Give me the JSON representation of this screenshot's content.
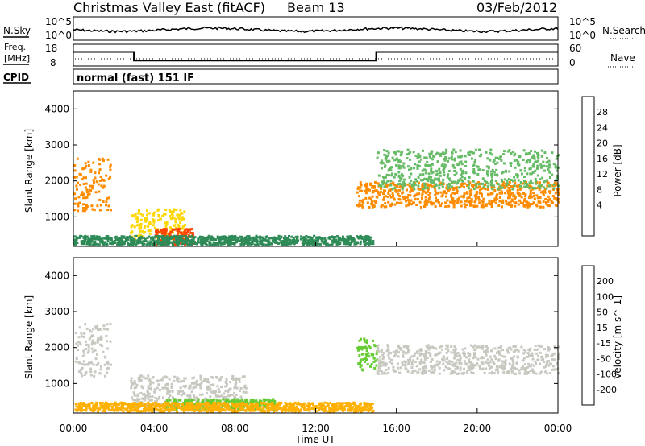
{
  "header": {
    "title": "Christmas Valley East (fitACF)",
    "beam": "Beam 13",
    "date": "03/Feb/2012"
  },
  "noise_panel": {
    "left_label": "N.Sky",
    "right_label": "N.Search",
    "tick_top": "10^5",
    "tick_bottom": "10^0"
  },
  "freq_panel": {
    "left_label_1": "Freq.",
    "left_label_2": "[MHz]",
    "right_label": "Nave",
    "left_ticks": [
      "18",
      "8"
    ],
    "right_ticks": [
      "60",
      "0"
    ],
    "freq_series_mhz": [
      [
        0,
        14.5
      ],
      [
        3.0,
        14.5
      ],
      [
        3.0,
        10.5
      ],
      [
        15.0,
        10.5
      ],
      [
        15.0,
        14.5
      ],
      [
        24,
        14.5
      ]
    ]
  },
  "cpid": {
    "label": "CPID",
    "program": "normal (fast) 151 IF"
  },
  "power_panel": {
    "ylabel": "Slant Range [km]",
    "yticks": [
      "4000",
      "3000",
      "2000",
      "1000"
    ],
    "ylim_km": [
      180,
      4500
    ],
    "colorbar": {
      "label": "Power [dB]",
      "ticks": [
        "28",
        "24",
        "20",
        "16",
        "12",
        "8",
        "4"
      ],
      "colors": [
        "#1010e0",
        "#3060c0",
        "#2e8b57",
        "#66bb66",
        "#b8e000",
        "#ffd700",
        "#ff8c00",
        "#ff4500",
        "#ff0000"
      ]
    }
  },
  "velocity_panel": {
    "ylabel": "Slant Range [km]",
    "yticks": [
      "4000",
      "3000",
      "2000",
      "1000"
    ],
    "ylim_km": [
      180,
      4500
    ],
    "colorbar": {
      "label": "Velocity [m s^-1]",
      "ticks": [
        "200",
        "100",
        "50",
        "15",
        "-15",
        "-50",
        "-100",
        "-200"
      ],
      "colors": [
        "#1a1ad8",
        "#2e6fd0",
        "#1f9a3a",
        "#66cc33",
        "#c8c8c0",
        "#ffb000",
        "#ff8000",
        "#ff4000",
        "#ff0000"
      ]
    }
  },
  "x_axis": {
    "label": "Time UT",
    "ticks": [
      "00:00",
      "04:00",
      "08:00",
      "12:00",
      "16:00",
      "20:00",
      "00:00"
    ]
  },
  "chart_data": {
    "type": "heatmap",
    "title": "Christmas Valley East (fitACF)",
    "xlabel": "Time UT",
    "ylabel": "Slant Range [km]",
    "xlim_hours": [
      0,
      24
    ],
    "ylim_km": [
      180,
      4500
    ],
    "power_regions": [
      {
        "t0": 0.0,
        "t1": 1.8,
        "r0": 1200,
        "r1": 2700,
        "level_db": 22
      },
      {
        "t0": 2.8,
        "t1": 5.5,
        "r0": 400,
        "r1": 1250,
        "level_db": 18
      },
      {
        "t0": 4.0,
        "t1": 6.0,
        "r0": 250,
        "r1": 700,
        "level_db": 26
      },
      {
        "t0": 0.0,
        "t1": 14.8,
        "r0": 250,
        "r1": 500,
        "level_db": 8
      },
      {
        "t0": 14.0,
        "t1": 24.0,
        "r0": 1300,
        "r1": 2000,
        "level_db": 22
      },
      {
        "t0": 15.0,
        "t1": 24.0,
        "r0": 1800,
        "r1": 2900,
        "level_db": 10
      }
    ],
    "velocity_regions": [
      {
        "t0": 0.0,
        "t1": 1.8,
        "r0": 1200,
        "r1": 2700,
        "velocity_ms": 0
      },
      {
        "t0": 2.8,
        "t1": 8.5,
        "r0": 350,
        "r1": 1250,
        "velocity_ms": 0
      },
      {
        "t0": 4.5,
        "t1": 10.0,
        "r0": 300,
        "r1": 600,
        "velocity_ms": 30
      },
      {
        "t0": 0.0,
        "t1": 14.8,
        "r0": 250,
        "r1": 500,
        "velocity_ms": -50
      },
      {
        "t0": 14.0,
        "t1": 15.0,
        "r0": 1400,
        "r1": 2300,
        "velocity_ms": 30
      },
      {
        "t0": 15.0,
        "t1": 24.0,
        "r0": 1300,
        "r1": 2100,
        "velocity_ms": 0
      }
    ]
  }
}
